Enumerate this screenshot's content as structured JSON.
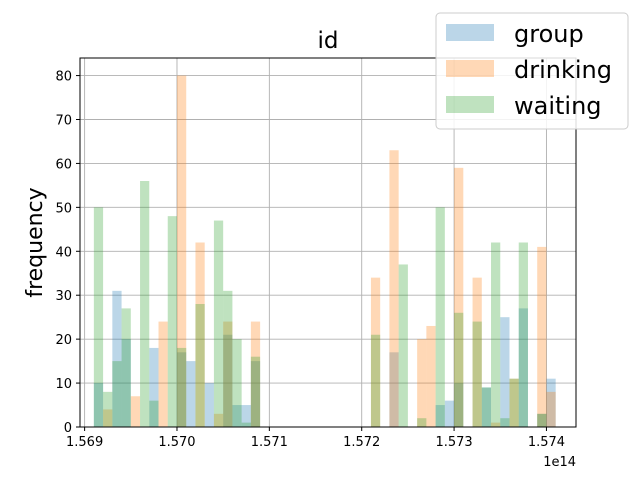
{
  "chart_data": {
    "type": "bar",
    "title": "id",
    "xlabel": "",
    "ylabel": "frequency",
    "x_offset_text": "1e14",
    "xlim": [
      1.56895,
      1.57432
    ],
    "ylim": [
      0,
      84
    ],
    "grid": true,
    "legend_placement": "top-right",
    "x_ticks": [
      1.569,
      1.57,
      1.571,
      1.572,
      1.573,
      1.574
    ],
    "x_tick_labels": [
      "1.569",
      "1.570",
      "1.571",
      "1.572",
      "1.573",
      "1.574"
    ],
    "y_ticks": [
      0,
      10,
      20,
      30,
      40,
      50,
      60,
      70,
      80
    ],
    "y_tick_labels": [
      "0",
      "10",
      "20",
      "30",
      "40",
      "50",
      "60",
      "70",
      "80"
    ],
    "bin_width": 0.0001,
    "series": [
      {
        "name": "group",
        "color": "#1f77b4",
        "bins": [
          [
            1.56915,
            10
          ],
          [
            1.56935,
            31
          ],
          [
            1.56945,
            20
          ],
          [
            1.56975,
            18
          ],
          [
            1.57005,
            17
          ],
          [
            1.57015,
            15
          ],
          [
            1.57035,
            10
          ],
          [
            1.57055,
            21
          ],
          [
            1.57065,
            5
          ],
          [
            1.57075,
            5
          ],
          [
            1.57085,
            15
          ],
          [
            1.57235,
            17
          ],
          [
            1.57285,
            5
          ],
          [
            1.57295,
            6
          ],
          [
            1.57305,
            10
          ],
          [
            1.57335,
            9
          ],
          [
            1.57355,
            25
          ],
          [
            1.57375,
            27
          ],
          [
            1.57395,
            3
          ],
          [
            1.57405,
            11
          ]
        ]
      },
      {
        "name": "drinking",
        "color": "#ff7f0e",
        "bins": [
          [
            1.56925,
            4
          ],
          [
            1.56955,
            7
          ],
          [
            1.56985,
            24
          ],
          [
            1.57005,
            80
          ],
          [
            1.57025,
            42
          ],
          [
            1.57045,
            3
          ],
          [
            1.57055,
            24
          ],
          [
            1.57085,
            24
          ],
          [
            1.57215,
            34
          ],
          [
            1.57235,
            63
          ],
          [
            1.57265,
            20
          ],
          [
            1.57275,
            23
          ],
          [
            1.57305,
            59
          ],
          [
            1.57325,
            34
          ],
          [
            1.57345,
            1
          ],
          [
            1.57365,
            11
          ],
          [
            1.57395,
            41
          ],
          [
            1.57405,
            8
          ]
        ]
      },
      {
        "name": "waiting",
        "color": "#2ca02c",
        "bins": [
          [
            1.56915,
            50
          ],
          [
            1.56925,
            8
          ],
          [
            1.56935,
            15
          ],
          [
            1.56945,
            27
          ],
          [
            1.56965,
            56
          ],
          [
            1.56975,
            6
          ],
          [
            1.56995,
            48
          ],
          [
            1.57005,
            18
          ],
          [
            1.57025,
            28
          ],
          [
            1.57045,
            47
          ],
          [
            1.57055,
            31
          ],
          [
            1.57065,
            20
          ],
          [
            1.57075,
            1
          ],
          [
            1.57085,
            16
          ],
          [
            1.57215,
            21
          ],
          [
            1.57245,
            37
          ],
          [
            1.57265,
            2
          ],
          [
            1.57285,
            50
          ],
          [
            1.57305,
            26
          ],
          [
            1.57325,
            24
          ],
          [
            1.57335,
            9
          ],
          [
            1.57345,
            42
          ],
          [
            1.57355,
            2
          ],
          [
            1.57365,
            11
          ],
          [
            1.57375,
            42
          ],
          [
            1.57395,
            3
          ]
        ]
      }
    ]
  }
}
